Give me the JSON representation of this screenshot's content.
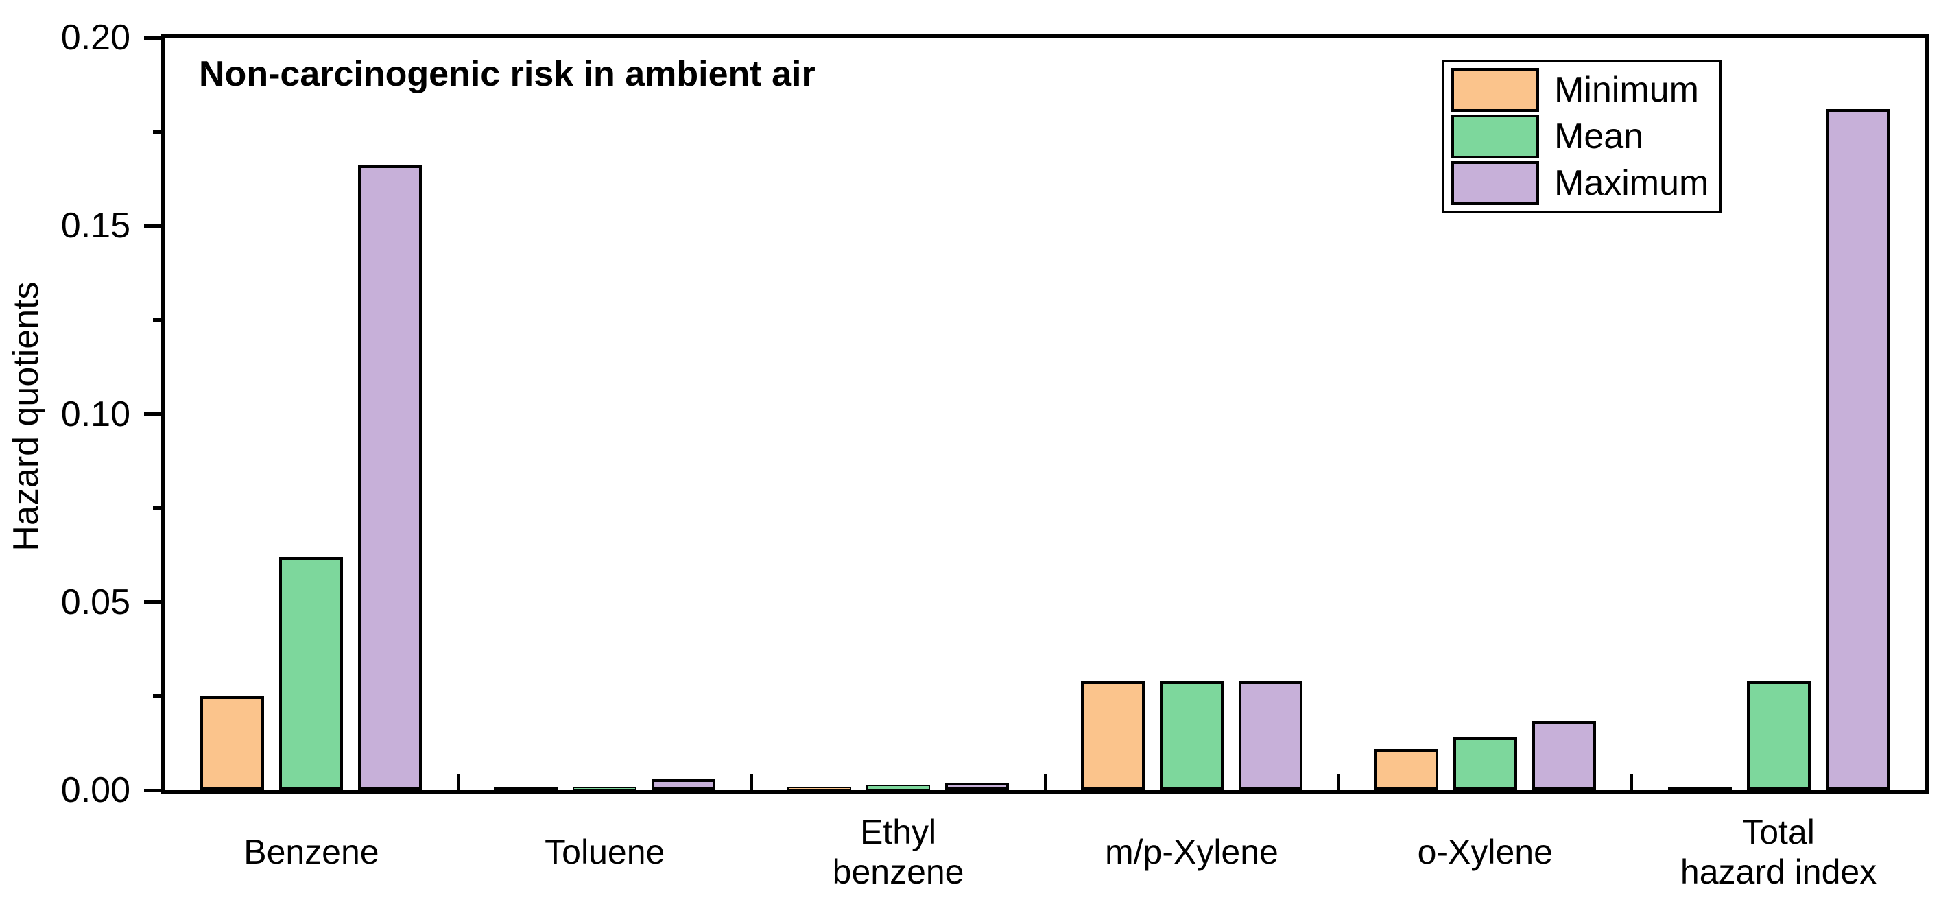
{
  "title": "Non-carcinogenic risk in ambient air",
  "y_axis_title": "Hazard quotients",
  "legend": {
    "items": [
      {
        "label": "Minimum",
        "color": "#FBC48C"
      },
      {
        "label": "Mean",
        "color": "#7DD79C"
      },
      {
        "label": "Maximum",
        "color": "#C7B0D9"
      }
    ]
  },
  "colors": {
    "minimum": "#FBC48C",
    "mean": "#7DD79C",
    "maximum": "#C7B0D9",
    "axis": "#000000",
    "background": "#FFFFFF"
  },
  "chart_data": {
    "type": "bar",
    "title": "Non-carcinogenic risk in ambient air",
    "xlabel": "",
    "ylabel": "Hazard quotients",
    "categories": [
      "Benzene",
      "Toluene",
      "Ethyl\nbenzene",
      "m/p-Xylene",
      "o-Xylene",
      "Total\nhazard index"
    ],
    "series": [
      {
        "name": "Minimum",
        "color": "#FBC48C",
        "values": [
          0.025,
          0.0005,
          0.001,
          0.029,
          0.011,
          0.0005
        ]
      },
      {
        "name": "Mean",
        "color": "#7DD79C",
        "values": [
          0.062,
          0.001,
          0.0015,
          0.029,
          0.014,
          0.029
        ]
      },
      {
        "name": "Maximum",
        "color": "#C7B0D9",
        "values": [
          0.166,
          0.003,
          0.002,
          0.029,
          0.0185,
          0.181
        ]
      }
    ],
    "ylim": [
      0,
      0.2
    ],
    "yticks": [
      0.0,
      0.05,
      0.1,
      0.15,
      0.2
    ],
    "ytick_labels": [
      "0.00",
      "0.05",
      "0.10",
      "0.15",
      "0.20"
    ],
    "minor_tick_step": 0.025,
    "grid": false,
    "legend_position": "top-right",
    "bar_edge_color": "#000000"
  }
}
